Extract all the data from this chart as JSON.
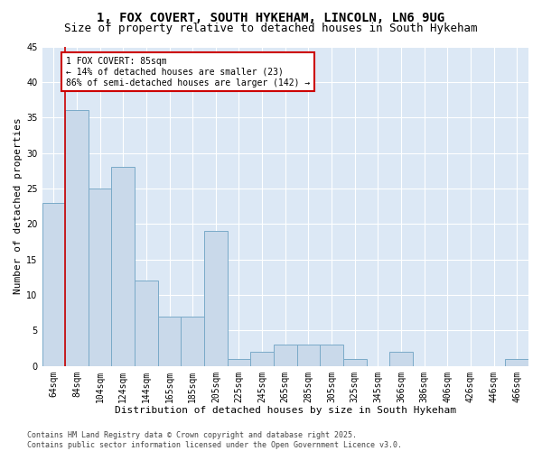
{
  "title1": "1, FOX COVERT, SOUTH HYKEHAM, LINCOLN, LN6 9UG",
  "title2": "Size of property relative to detached houses in South Hykeham",
  "xlabel": "Distribution of detached houses by size in South Hykeham",
  "ylabel": "Number of detached properties",
  "categories": [
    "64sqm",
    "84sqm",
    "104sqm",
    "124sqm",
    "144sqm",
    "165sqm",
    "185sqm",
    "205sqm",
    "225sqm",
    "245sqm",
    "265sqm",
    "285sqm",
    "305sqm",
    "325sqm",
    "345sqm",
    "366sqm",
    "386sqm",
    "406sqm",
    "426sqm",
    "446sqm",
    "466sqm"
  ],
  "values": [
    23,
    36,
    25,
    28,
    12,
    7,
    7,
    19,
    1,
    2,
    3,
    3,
    3,
    1,
    0,
    2,
    0,
    0,
    0,
    0,
    1
  ],
  "bar_color": "#c9d9ea",
  "bar_edge_color": "#7aaac8",
  "annotation_text_line1": "1 FOX COVERT: 85sqm",
  "annotation_text_line2": "← 14% of detached houses are smaller (23)",
  "annotation_text_line3": "86% of semi-detached houses are larger (142) →",
  "annotation_box_color": "#ffffff",
  "annotation_box_edge": "#cc0000",
  "red_line_x": 0.5,
  "ylim": [
    0,
    45
  ],
  "yticks": [
    0,
    5,
    10,
    15,
    20,
    25,
    30,
    35,
    40,
    45
  ],
  "plot_bg_color": "#dce8f5",
  "grid_color": "#ffffff",
  "fig_bg_color": "#ffffff",
  "footer": "Contains HM Land Registry data © Crown copyright and database right 2025.\nContains public sector information licensed under the Open Government Licence v3.0.",
  "title1_fontsize": 10,
  "title2_fontsize": 9,
  "xlabel_fontsize": 8,
  "ylabel_fontsize": 8,
  "tick_fontsize": 7,
  "annotation_fontsize": 7,
  "footer_fontsize": 6
}
